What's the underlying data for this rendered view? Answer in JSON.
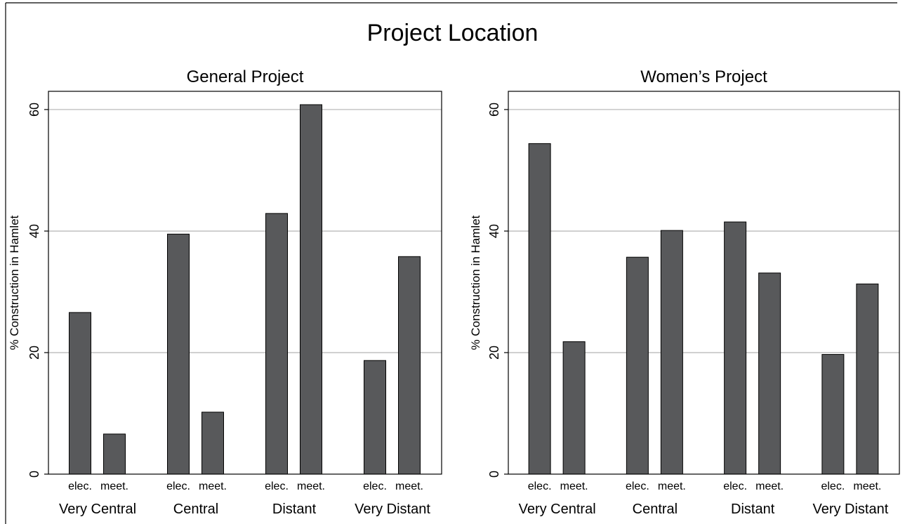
{
  "figure": {
    "title": "Project Location"
  },
  "colors": {
    "bar": "#58595b",
    "grid": "#b3b3b3",
    "axis": "#000000"
  },
  "chart_data": [
    {
      "type": "bar",
      "title": "General Project",
      "ylabel": "% Construction in Hamlet",
      "xlabel": "",
      "ylim": [
        0,
        63
      ],
      "yticks": [
        0,
        20,
        40,
        60
      ],
      "grid": true,
      "groups": [
        "Very Central",
        "Central",
        "Distant",
        "Very Distant"
      ],
      "subcategories": [
        "elec.",
        "meet."
      ],
      "values": [
        [
          26.6,
          6.6
        ],
        [
          39.5,
          10.2
        ],
        [
          42.9,
          60.8
        ],
        [
          18.7,
          35.8
        ]
      ]
    },
    {
      "type": "bar",
      "title": "Women’s Project",
      "ylabel": "% Construction in Hamlet",
      "xlabel": "",
      "ylim": [
        0,
        63
      ],
      "yticks": [
        0,
        20,
        40,
        60
      ],
      "grid": true,
      "groups": [
        "Very Central",
        "Central",
        "Distant",
        "Very Distant"
      ],
      "subcategories": [
        "elec.",
        "meet."
      ],
      "values": [
        [
          54.4,
          21.8
        ],
        [
          35.7,
          40.1
        ],
        [
          41.5,
          33.1
        ],
        [
          19.7,
          31.3
        ]
      ]
    }
  ]
}
